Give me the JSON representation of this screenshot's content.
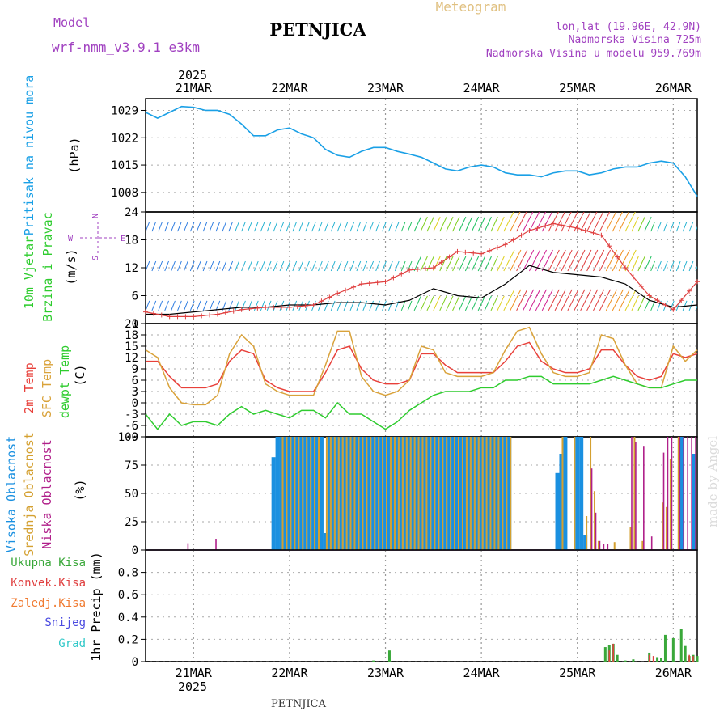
{
  "header": {
    "model_label": "Model",
    "model_name": "wrf-nmm_v3.9.1 e3km",
    "title": "PETNJICA",
    "subtitle": "Meteogram",
    "lonlat": "lon,lat (19.96E, 42.9N)",
    "altitude": "Nadmorska Visina 725m",
    "model_altitude": "Nadmorska Visina u modelu 959.769m",
    "footer_station": "PETNJICA",
    "watermark": "made by Angel"
  },
  "colors": {
    "pressure": "#1aa0e6",
    "t2m": "#e8403a",
    "sfc": "#d9a23a",
    "dew": "#2ecc2e",
    "high_cloud": "#1a90e0",
    "mid_cloud": "#d4a030",
    "low_cloud": "#b0208a",
    "total_rain": "#3aa83a",
    "conv_rain": "#e04040",
    "frz_rain": "#f07a30",
    "snow": "#4a4ae0",
    "hail": "#30c8c8",
    "title_purple": "#a040c0",
    "title_gold": "#e0c080"
  },
  "time_axis": {
    "year": "2025",
    "dates": [
      "21MAR",
      "22MAR",
      "23MAR",
      "24MAR",
      "25MAR",
      "26MAR"
    ],
    "start_hour": 0,
    "end_hour": 138,
    "date_hours": [
      12,
      36,
      60,
      84,
      108,
      132
    ]
  },
  "chart_data": [
    {
      "type": "line",
      "name": "pressure",
      "ylabels": [
        "Pritisak na nivou mora",
        "(hPa)"
      ],
      "ylim": [
        1003,
        1032
      ],
      "yticks": [
        1008,
        1015,
        1022,
        1029
      ],
      "series": [
        {
          "name": "Pritisak",
          "x": [
            0,
            3,
            6,
            9,
            12,
            15,
            18,
            21,
            24,
            27,
            30,
            33,
            36,
            39,
            42,
            45,
            48,
            51,
            54,
            57,
            60,
            63,
            66,
            69,
            72,
            75,
            78,
            81,
            84,
            87,
            90,
            93,
            96,
            99,
            102,
            105,
            108,
            111,
            114,
            117,
            120,
            123,
            126,
            129,
            132,
            135,
            138
          ],
          "values": [
            1028.5,
            1027,
            1028.5,
            1030,
            1029.8,
            1029,
            1029,
            1028,
            1025.5,
            1022.5,
            1022.5,
            1024,
            1024.5,
            1023,
            1022,
            1019,
            1017.5,
            1017,
            1018.5,
            1019.5,
            1019.5,
            1018.5,
            1017.8,
            1017,
            1015.5,
            1014,
            1013.5,
            1014.5,
            1015,
            1014.5,
            1013,
            1012.5,
            1012.5,
            1012,
            1013,
            1013.5,
            1013.5,
            1012.5,
            1013,
            1014,
            1014.5,
            1014.5,
            1015.5,
            1016,
            1015.5,
            1012,
            1007
          ]
        }
      ]
    },
    {
      "type": "line",
      "name": "wind",
      "ylabels": [
        "10m Vjetar",
        "Brzina i Pravac",
        "(m/s)"
      ],
      "compass": [
        "N",
        "S",
        "W",
        "E"
      ],
      "ylim": [
        0,
        24
      ],
      "yticks": [
        0,
        6,
        12,
        18,
        24
      ],
      "series": [
        {
          "name": "Brzina",
          "x": [
            0,
            6,
            12,
            18,
            24,
            30,
            36,
            42,
            48,
            54,
            60,
            66,
            72,
            78,
            84,
            90,
            96,
            102,
            108,
            114,
            120,
            126,
            132,
            138
          ],
          "values": [
            2,
            2,
            2.5,
            3,
            3.5,
            3.5,
            4,
            4,
            4.5,
            4.5,
            4,
            5,
            7.5,
            6,
            5.5,
            8.5,
            12.5,
            11,
            10.5,
            10,
            8.5,
            5,
            3.5,
            4
          ]
        },
        {
          "name": "Udari",
          "x": [
            0,
            6,
            12,
            18,
            24,
            30,
            36,
            42,
            48,
            54,
            60,
            66,
            72,
            78,
            84,
            90,
            96,
            102,
            108,
            114,
            120,
            126,
            132,
            138
          ],
          "values": [
            2.5,
            1.5,
            1.5,
            2,
            3,
            3.5,
            3.5,
            4,
            6.5,
            8.5,
            9,
            11.5,
            12,
            15.5,
            15,
            17,
            20,
            21.5,
            20.5,
            19,
            12,
            6,
            3,
            9
          ]
        }
      ]
    },
    {
      "type": "line",
      "name": "temperature",
      "ylabels": [
        "2m Temp",
        "SFC Temp",
        "dewpt Temp",
        "(C)"
      ],
      "ylim": [
        -9,
        21
      ],
      "yticks": [
        -9,
        -6,
        -3,
        0,
        3,
        6,
        9,
        12,
        15,
        18,
        21
      ],
      "series": [
        {
          "name": "2m Temp",
          "x": [
            0,
            3,
            6,
            9,
            12,
            15,
            18,
            21,
            24,
            27,
            30,
            33,
            36,
            39,
            42,
            45,
            48,
            51,
            54,
            57,
            60,
            63,
            66,
            69,
            72,
            75,
            78,
            81,
            84,
            87,
            90,
            93,
            96,
            99,
            102,
            105,
            108,
            111,
            114,
            117,
            120,
            123,
            126,
            129,
            132,
            135,
            138
          ],
          "values": [
            11,
            11,
            7,
            4,
            4,
            4,
            5,
            11,
            14,
            13,
            6,
            4,
            3,
            3,
            3,
            8,
            14,
            15,
            9,
            6,
            5,
            5,
            6,
            13,
            13,
            10,
            8,
            8,
            8,
            8,
            11,
            15,
            16,
            11,
            9,
            8,
            8,
            9,
            14,
            14,
            10,
            7,
            6,
            7,
            13,
            12,
            13
          ]
        },
        {
          "name": "SFC Temp",
          "x": [
            0,
            3,
            6,
            9,
            12,
            15,
            18,
            21,
            24,
            27,
            30,
            33,
            36,
            39,
            42,
            45,
            48,
            51,
            54,
            57,
            60,
            63,
            66,
            69,
            72,
            75,
            78,
            81,
            84,
            87,
            90,
            93,
            96,
            99,
            102,
            105,
            108,
            111,
            114,
            117,
            120,
            123,
            126,
            129,
            132,
            135,
            138
          ],
          "values": [
            14,
            12,
            4,
            0,
            -0.5,
            -0.5,
            2,
            13,
            18,
            15,
            5,
            3,
            2,
            2,
            2,
            10,
            19,
            19,
            7,
            3,
            2,
            3,
            6,
            15,
            14,
            8,
            7,
            7,
            7,
            8,
            14,
            19,
            20,
            13,
            8,
            7,
            7,
            8,
            18,
            17,
            10,
            5,
            4,
            4,
            15,
            11,
            14
          ]
        },
        {
          "name": "Rosa",
          "x": [
            0,
            3,
            6,
            9,
            12,
            15,
            18,
            21,
            24,
            27,
            30,
            33,
            36,
            39,
            42,
            45,
            48,
            51,
            54,
            57,
            60,
            63,
            66,
            69,
            72,
            75,
            78,
            81,
            84,
            87,
            90,
            93,
            96,
            99,
            102,
            105,
            108,
            111,
            114,
            117,
            120,
            123,
            126,
            129,
            132,
            135,
            138
          ],
          "values": [
            -3,
            -7,
            -3,
            -6,
            -5,
            -5,
            -6,
            -3,
            -1,
            -3,
            -2,
            -3,
            -4,
            -2,
            -2,
            -4,
            0,
            -3,
            -3,
            -5,
            -7,
            -5,
            -2,
            0,
            2,
            3,
            3,
            3,
            4,
            4,
            6,
            6,
            7,
            7,
            5,
            5,
            5,
            5,
            6,
            7,
            6,
            5,
            4,
            4,
            5,
            6,
            6
          ]
        }
      ]
    },
    {
      "type": "bar",
      "name": "cloud",
      "ylabels": [
        "Visoka Oblacnost",
        "Srednja Oblacnost",
        "Niska Oblacnost",
        "(%)"
      ],
      "ylim": [
        0,
        100
      ],
      "yticks": [
        0,
        25,
        50,
        75,
        100
      ],
      "series": [
        {
          "name": "Visoka",
          "x": [
            32,
            33,
            34,
            35,
            36,
            37,
            38,
            39,
            40,
            41,
            42,
            43,
            44,
            45,
            46,
            47,
            48,
            49,
            50,
            51,
            52,
            53,
            54,
            55,
            56,
            57,
            58,
            59,
            60,
            61,
            62,
            63,
            64,
            65,
            66,
            67,
            68,
            69,
            70,
            71,
            72,
            73,
            74,
            75,
            76,
            77,
            78,
            79,
            80,
            81,
            82,
            83,
            84,
            85,
            86,
            87,
            88,
            89,
            90,
            91,
            103,
            104,
            105,
            108,
            109,
            110,
            134,
            137
          ],
          "values": [
            82,
            100,
            100,
            100,
            100,
            100,
            100,
            100,
            100,
            100,
            100,
            100,
            100,
            15,
            100,
            100,
            100,
            100,
            100,
            100,
            100,
            100,
            100,
            100,
            100,
            100,
            100,
            100,
            100,
            100,
            100,
            100,
            100,
            100,
            100,
            100,
            100,
            100,
            100,
            100,
            100,
            100,
            100,
            100,
            100,
            100,
            100,
            100,
            100,
            100,
            100,
            100,
            100,
            100,
            100,
            100,
            100,
            100,
            100,
            100,
            68,
            85,
            100,
            100,
            100,
            13,
            100,
            85
          ]
        },
        {
          "name": "Srednja",
          "x": [
            34,
            35,
            36,
            37,
            38,
            39,
            40,
            41,
            42,
            43,
            45,
            46,
            47,
            48,
            49,
            50,
            51,
            52,
            53,
            54,
            55,
            56,
            57,
            58,
            59,
            60,
            61,
            62,
            63,
            64,
            65,
            66,
            67,
            68,
            69,
            70,
            71,
            72,
            73,
            74,
            75,
            76,
            77,
            78,
            79,
            80,
            81,
            82,
            83,
            84,
            85,
            86,
            87,
            88,
            89,
            90,
            91,
            104,
            107,
            110,
            111,
            112,
            113,
            117,
            121,
            122,
            124,
            129,
            130,
            131,
            133
          ],
          "values": [
            100,
            100,
            100,
            100,
            100,
            100,
            100,
            100,
            100,
            100,
            100,
            100,
            100,
            100,
            100,
            100,
            100,
            100,
            100,
            100,
            100,
            100,
            100,
            100,
            100,
            100,
            100,
            100,
            100,
            100,
            100,
            100,
            100,
            100,
            100,
            100,
            100,
            100,
            100,
            100,
            100,
            100,
            100,
            100,
            100,
            100,
            100,
            100,
            100,
            100,
            100,
            100,
            100,
            100,
            100,
            100,
            100,
            100,
            100,
            30,
            100,
            52,
            8,
            7,
            20,
            100,
            8,
            42,
            38,
            80,
            100
          ]
        },
        {
          "name": "Niska",
          "x": [
            10,
            17,
            111,
            112,
            113,
            114,
            115,
            121,
            122,
            124,
            126,
            129,
            130,
            131,
            133,
            134,
            135,
            136,
            137
          ],
          "values": [
            6,
            10,
            72,
            33,
            8,
            5,
            5,
            100,
            95,
            92,
            12,
            86,
            100,
            100,
            100,
            100,
            100,
            100,
            100
          ]
        }
      ]
    },
    {
      "type": "bar",
      "name": "precipitation",
      "ylabels": [
        "1hr Precip (mm)"
      ],
      "legend": [
        "Ukupna Kisa",
        "Konvek.Kisa",
        "Zaledj.Kisa",
        "Snijeg",
        "Grad"
      ],
      "ylim": [
        0,
        1
      ],
      "yticks": [
        0,
        0.2,
        0.4,
        0.6,
        0.8
      ],
      "series": [
        {
          "name": "Ukupna Kisa",
          "x": [
            57,
            61,
            115,
            116,
            117,
            118,
            120,
            122,
            126,
            128,
            129,
            130,
            132,
            134,
            135,
            136,
            137,
            138
          ],
          "values": [
            0.01,
            0.1,
            0.13,
            0.15,
            0.16,
            0.06,
            0.01,
            0.02,
            0.08,
            0.04,
            0.03,
            0.24,
            0.21,
            0.29,
            0.14,
            0.05,
            0.06,
            0.05
          ]
        },
        {
          "name": "Konvek.Kisa",
          "x": [
            116,
            117,
            126,
            127,
            136,
            137
          ],
          "values": [
            0.1,
            0.16,
            0.06,
            0.05,
            0.06,
            0.05
          ]
        }
      ]
    }
  ]
}
